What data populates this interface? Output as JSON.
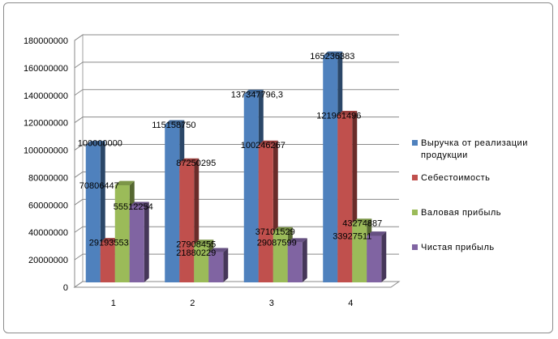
{
  "chart_data": {
    "type": "bar",
    "style": "3d-clustered-column",
    "categories": [
      "1",
      "2",
      "3",
      "4"
    ],
    "y_ticks": [
      "0",
      "20000000",
      "40000000",
      "60000000",
      "80000000",
      "100000000",
      "120000000",
      "140000000",
      "160000000",
      "180000000"
    ],
    "ylim": [
      0,
      180000000
    ],
    "grid": "horizontal",
    "legend_position": "right",
    "series": [
      {
        "name_lines": [
          "Выручка от реализации",
          "продукции"
        ],
        "color": "#4f81bd",
        "values": [
          100000000,
          115158750,
          137347796.3,
          165236383
        ],
        "labels": [
          "100000000",
          "115158750",
          "137347796,3",
          "165236383"
        ]
      },
      {
        "name_lines": [
          "Себестоимость"
        ],
        "color": "#c0504d",
        "values": [
          29193553,
          87250295,
          100246267,
          121961496
        ],
        "labels": [
          "29193553",
          "87250295",
          "100246267",
          "121961496"
        ]
      },
      {
        "name_lines": [
          "Валовая прибыль"
        ],
        "color": "#9bbb59",
        "values": [
          70806447,
          27908455,
          37101529,
          43274887
        ],
        "labels": [
          "70806447",
          "27908455",
          "37101529",
          "43274887"
        ]
      },
      {
        "name_lines": [
          "Чистая прибыль"
        ],
        "color": "#8064a2",
        "values": [
          55512254,
          21880229,
          29087599,
          33927511
        ],
        "labels": [
          "55512254",
          "21880229",
          "29087599",
          "33927511"
        ]
      }
    ]
  }
}
